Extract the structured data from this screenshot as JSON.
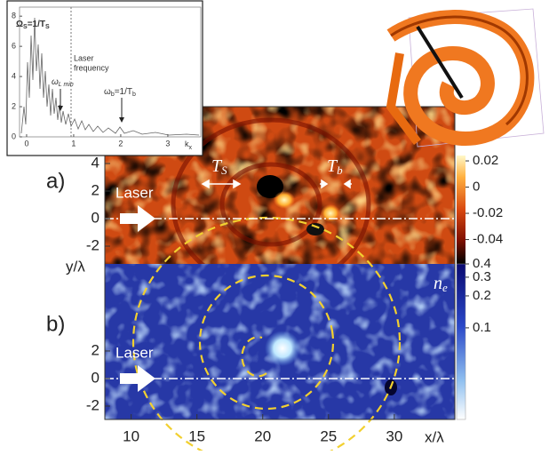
{
  "inset": {
    "xticks": [
      0,
      1,
      2,
      3
    ],
    "yticks": [
      0,
      2,
      4,
      6,
      8
    ],
    "xlim": [
      -0.15,
      3.7
    ],
    "ylim": [
      0,
      8.6
    ],
    "x_label": {
      "base": "k",
      "sub": "x"
    },
    "omega_s": {
      "base": "Ω",
      "sub": "S",
      "rest": "=1/T",
      "sub2": "S"
    },
    "laser_frequency": [
      "Laser",
      "frequency"
    ],
    "omega_l": {
      "base": "ω",
      "sub": "L min"
    },
    "omega_b": {
      "base": "ω",
      "sub": "b",
      "rest": "=1/T",
      "sub2": "b"
    }
  },
  "main": {
    "xticks": [
      10,
      15,
      20,
      25,
      30
    ],
    "xlim": [
      8,
      34.6
    ],
    "x_label": "x/λ",
    "y_label": "y/λ",
    "panel_a": {
      "label": "a)",
      "yticks": [
        -2,
        0,
        2,
        4
      ],
      "ylim": [
        -3.29,
        8.13
      ],
      "laser": "Laser",
      "ts": {
        "base": "T",
        "sub": "S"
      },
      "tb": {
        "base": "T",
        "sub": "b"
      },
      "colorbar": {
        "ticks": [
          0.02,
          0,
          -0.02,
          -0.04
        ],
        "lim": [
          -0.0586,
          0.0241
        ],
        "log": false
      }
    },
    "panel_b": {
      "label": "b)",
      "yticks": [
        -2,
        0,
        2
      ],
      "ylim": [
        -2.97,
        8.32
      ],
      "laser": "Laser",
      "colorbar": {
        "ticks": [
          0.4,
          0.3,
          0.2,
          0.1
        ],
        "lim": [
          0.0137,
          0.4
        ],
        "log": true,
        "label": {
          "base": "n",
          "sub": "e"
        }
      }
    }
  }
}
